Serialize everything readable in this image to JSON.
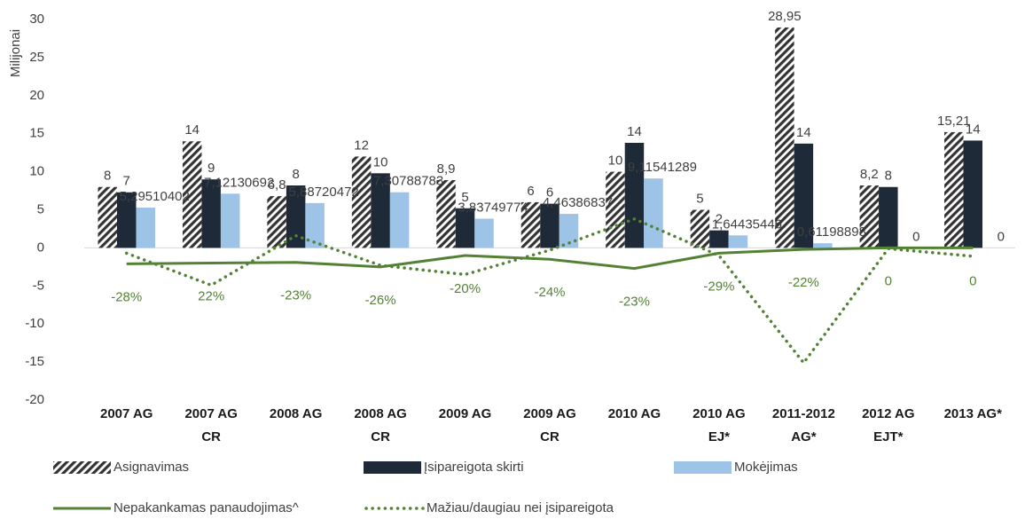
{
  "chart_data": {
    "type": "bar",
    "y_label": "Milijonai",
    "categories": [
      [
        "2007 AG"
      ],
      [
        "2007 AG",
        "CR"
      ],
      [
        "2008 AG"
      ],
      [
        "2008 AG",
        "CR"
      ],
      [
        "2009 AG"
      ],
      [
        "2009 AG",
        "CR"
      ],
      [
        "2010 AG"
      ],
      [
        "2010 AG",
        "EJ*"
      ],
      [
        "2011-2012",
        "AG*"
      ],
      [
        "2012 AG",
        "EJT*"
      ],
      [
        "2013 AG*"
      ]
    ],
    "ylim": [
      -20,
      30
    ],
    "yticks": [
      -20,
      -15,
      -10,
      -5,
      0,
      5,
      10,
      15,
      20,
      25,
      30
    ],
    "grid": false,
    "series": [
      {
        "name": "Asignavimas",
        "color": "#333333",
        "pattern": "hatch",
        "values": [
          8,
          14,
          6.8,
          12,
          8.9,
          6,
          10,
          5,
          28.95,
          8.2,
          15.21
        ],
        "value_labels": [
          "8",
          "14",
          "6,8",
          "12",
          "8,9",
          "6",
          "10",
          "5",
          "28,95",
          "8,2",
          "15,21"
        ]
      },
      {
        "name": "Įsipareigota skirti",
        "color": "#1f2a38",
        "values": [
          7.3,
          9,
          8.2,
          9.8,
          5.2,
          5.8,
          13.8,
          2.3,
          13.7,
          8,
          14.1
        ],
        "value_labels": [
          "7",
          "9",
          "8",
          "10",
          "5",
          "6",
          "14",
          "2",
          "14",
          "8",
          "14"
        ]
      },
      {
        "name": "Mokėjimas",
        "color": "#9dc3e6",
        "values": [
          5.29510402,
          7.12130692,
          5.88720472,
          7.30788783,
          3.83749774,
          4.46386837,
          9.11541289,
          1.64435446,
          0.61198898,
          0,
          0
        ],
        "value_labels": [
          "5,29510402",
          "7,12130692",
          "5,88720472",
          "7,30788783",
          "3,83749774",
          "4,46386837",
          "9,11541289",
          "1,64435446",
          "0,61198898",
          "0",
          "0"
        ]
      },
      {
        "name": "Nepakankamas panaudojimas^",
        "type": "line",
        "color": "#548235",
        "style": "solid",
        "values": [
          -2.1,
          -2.0,
          -1.9,
          -2.5,
          -1.0,
          -1.5,
          -2.7,
          -0.7,
          -0.2,
          0,
          0
        ],
        "value_labels": [
          "-28%",
          "22%",
          "-23%",
          "-26%",
          "-20%",
          "-24%",
          "-23%",
          "-29%",
          "-22%",
          "0",
          "0"
        ]
      },
      {
        "name": "Mažiau/daugiau nei įsipareigota",
        "type": "line",
        "color": "#548235",
        "style": "dotted",
        "values": [
          -0.7,
          -4.9,
          1.6,
          -2.3,
          -3.5,
          -0.3,
          3.8,
          -1.0,
          -15.1,
          -0.1,
          -1.1
        ]
      }
    ]
  }
}
